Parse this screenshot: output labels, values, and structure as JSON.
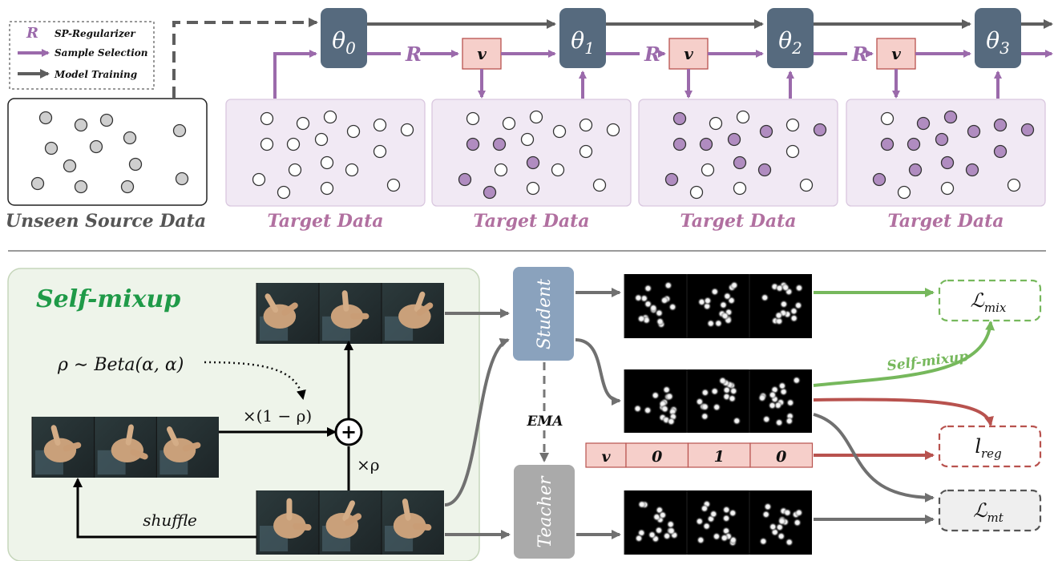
{
  "legend": {
    "r_symbol": "R",
    "sp_regularizer": "SP-Regularizer",
    "sample_selection": "Sample Selection",
    "model_training": "Model Training"
  },
  "top": {
    "source_caption": "Unseen Source Data",
    "target_caption": "Target Data",
    "models": [
      "θ0",
      "θ1",
      "θ2",
      "θ3"
    ],
    "model_base": "θ",
    "model_subs": [
      "0",
      "1",
      "2",
      "3"
    ],
    "regularizer_label": "R",
    "selector_label": "v"
  },
  "bottom": {
    "selfmix_title": "Self-mixup",
    "rho_formula": "ρ ∼ Beta(α, α)",
    "times_one_minus_rho": "×(1 − ρ)",
    "times_rho": "×ρ",
    "plus": "+",
    "shuffle": "shuffle",
    "student": "Student",
    "teacher": "Teacher",
    "ema": "EMA",
    "selfmix_arrow": "Self-mixup",
    "v_label": "v",
    "v_values": [
      "0",
      "1",
      "0"
    ],
    "loss_mix_base": "ℒ",
    "loss_mix_sub": "mix",
    "loss_reg_base": "l",
    "loss_reg_sub": "reg",
    "loss_mt_base": "ℒ",
    "loss_mt_sub": "mt"
  },
  "colors": {
    "purple": "#9b6aab",
    "model_box": "#566a7e",
    "grey_arrow": "#666666",
    "green": "#76b85c",
    "red": "#b8524e",
    "pink": "#f6cfca",
    "target_bg": "#f1e9f4"
  }
}
